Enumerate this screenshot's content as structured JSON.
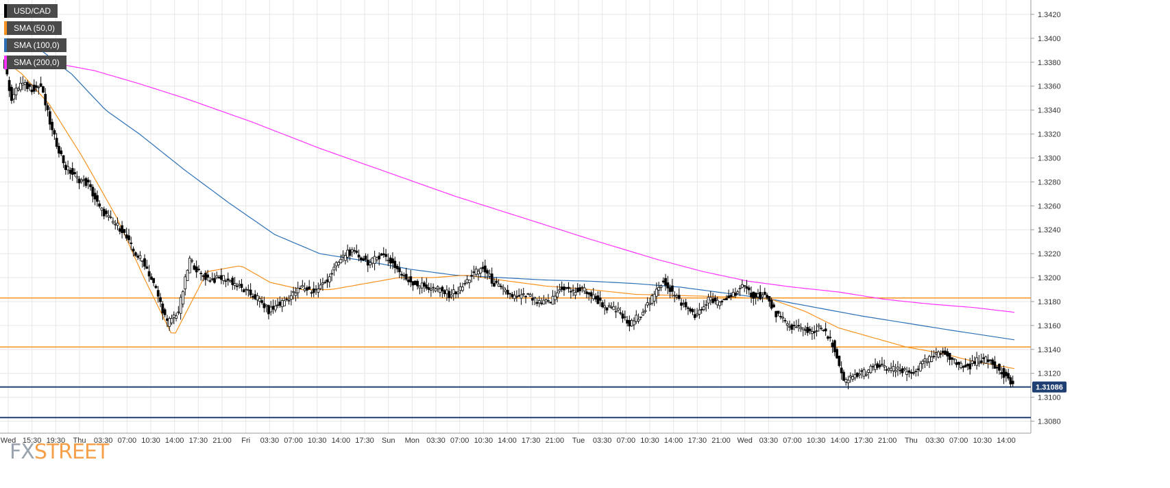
{
  "legend": [
    {
      "label": "USD/CAD",
      "color": "#000000"
    },
    {
      "label": "SMA (50,0)",
      "color": "#f7931e"
    },
    {
      "label": "SMA (100,0)",
      "color": "#2a6fb5"
    },
    {
      "label": "SMA (200,0)",
      "color": "#ff33ff"
    }
  ],
  "watermark": {
    "part1": "FX",
    "part2": "STREET"
  },
  "chart_data": {
    "type": "candlestick",
    "symbol": "USD/CAD",
    "ylim": [
      1.307,
      1.3432
    ],
    "y_ticks": [
      "1.3080",
      "1.3100",
      "1.3120",
      "1.3140",
      "1.3160",
      "1.3180",
      "1.3200",
      "1.3220",
      "1.3240",
      "1.3260",
      "1.3280",
      "1.3300",
      "1.3320",
      "1.3340",
      "1.3360",
      "1.3380",
      "1.3400",
      "1.3420"
    ],
    "x_ticks": [
      "Wed",
      "15:30",
      "19:30",
      "Thu",
      "03:30",
      "07:00",
      "10:30",
      "14:00",
      "17:30",
      "21:00",
      "Fri",
      "03:30",
      "07:00",
      "10:30",
      "14:00",
      "17:30",
      "Sun",
      "Mon",
      "03:30",
      "07:00",
      "10:30",
      "14:00",
      "17:30",
      "21:00",
      "Tue",
      "03:30",
      "07:00",
      "10:30",
      "14:00",
      "17:30",
      "21:00",
      "Wed",
      "03:30",
      "07:00",
      "10:30",
      "14:00",
      "17:30",
      "21:00",
      "Thu",
      "03:30",
      "07:00",
      "10:30",
      "14:00"
    ],
    "current_price": {
      "label": "1.31086",
      "value": 1.31086
    },
    "horizontal_levels": [
      {
        "value": 1.3183,
        "color": "#f7931e"
      },
      {
        "value": 1.3142,
        "color": "#f7931e"
      },
      {
        "value": 1.31086,
        "color": "#1f3f73"
      },
      {
        "value": 1.3083,
        "color": "#1f3f73"
      }
    ],
    "price_path": [
      [
        0,
        1.3385
      ],
      [
        4,
        1.335
      ],
      [
        8,
        1.3362
      ],
      [
        13,
        1.3358
      ],
      [
        17,
        1.336
      ],
      [
        22,
        1.3322
      ],
      [
        28,
        1.3292
      ],
      [
        33,
        1.3283
      ],
      [
        38,
        1.3278
      ],
      [
        43,
        1.3258
      ],
      [
        48,
        1.3248
      ],
      [
        53,
        1.324
      ],
      [
        58,
        1.3222
      ],
      [
        63,
        1.3212
      ],
      [
        68,
        1.319
      ],
      [
        73,
        1.3162
      ],
      [
        78,
        1.3172
      ],
      [
        83,
        1.3215
      ],
      [
        88,
        1.3202
      ],
      [
        93,
        1.3198
      ],
      [
        98,
        1.32
      ],
      [
        103,
        1.3195
      ],
      [
        108,
        1.3188
      ],
      [
        113,
        1.3183
      ],
      [
        118,
        1.3172
      ],
      [
        123,
        1.3178
      ],
      [
        128,
        1.3185
      ],
      [
        133,
        1.3192
      ],
      [
        138,
        1.3188
      ],
      [
        143,
        1.3196
      ],
      [
        148,
        1.321
      ],
      [
        153,
        1.3222
      ],
      [
        158,
        1.3218
      ],
      [
        163,
        1.3212
      ],
      [
        168,
        1.322
      ],
      [
        173,
        1.3212
      ],
      [
        178,
        1.32
      ],
      [
        183,
        1.3195
      ],
      [
        188,
        1.3192
      ],
      [
        193,
        1.319
      ],
      [
        198,
        1.3186
      ],
      [
        203,
        1.319
      ],
      [
        208,
        1.3202
      ],
      [
        213,
        1.3208
      ],
      [
        218,
        1.3195
      ],
      [
        223,
        1.3188
      ],
      [
        228,
        1.3183
      ],
      [
        233,
        1.3185
      ],
      [
        238,
        1.3178
      ],
      [
        243,
        1.318
      ],
      [
        248,
        1.3192
      ],
      [
        253,
        1.3188
      ],
      [
        258,
        1.319
      ],
      [
        263,
        1.3182
      ],
      [
        268,
        1.3175
      ],
      [
        273,
        1.3172
      ],
      [
        278,
        1.316
      ],
      [
        283,
        1.317
      ],
      [
        288,
        1.3182
      ],
      [
        293,
        1.3198
      ],
      [
        298,
        1.3185
      ],
      [
        303,
        1.3175
      ],
      [
        308,
        1.3168
      ],
      [
        313,
        1.3182
      ],
      [
        318,
        1.3178
      ],
      [
        323,
        1.3185
      ],
      [
        328,
        1.3192
      ],
      [
        333,
        1.3185
      ],
      [
        338,
        1.3185
      ],
      [
        343,
        1.317
      ],
      [
        348,
        1.316
      ],
      [
        353,
        1.3158
      ],
      [
        358,
        1.3155
      ],
      [
        363,
        1.3158
      ],
      [
        368,
        1.3145
      ],
      [
        373,
        1.3112
      ],
      [
        378,
        1.3118
      ],
      [
        383,
        1.3122
      ],
      [
        388,
        1.3126
      ],
      [
        393,
        1.3124
      ],
      [
        398,
        1.3122
      ],
      [
        403,
        1.312
      ],
      [
        408,
        1.3128
      ],
      [
        413,
        1.3134
      ],
      [
        418,
        1.3138
      ],
      [
        423,
        1.3128
      ],
      [
        428,
        1.3125
      ],
      [
        433,
        1.3132
      ],
      [
        438,
        1.313
      ],
      [
        443,
        1.3122
      ],
      [
        447,
        1.3112
      ]
    ],
    "sma50": [
      [
        0,
        1.3382
      ],
      [
        8,
        1.337
      ],
      [
        20,
        1.3345
      ],
      [
        35,
        1.33
      ],
      [
        50,
        1.325
      ],
      [
        62,
        1.32
      ],
      [
        75,
        1.315
      ],
      [
        90,
        1.3205
      ],
      [
        105,
        1.321
      ],
      [
        118,
        1.3196
      ],
      [
        132,
        1.319
      ],
      [
        145,
        1.319
      ],
      [
        160,
        1.3195
      ],
      [
        175,
        1.32
      ],
      [
        190,
        1.32
      ],
      [
        205,
        1.3202
      ],
      [
        220,
        1.3198
      ],
      [
        240,
        1.3193
      ],
      [
        260,
        1.319
      ],
      [
        280,
        1.3186
      ],
      [
        300,
        1.3185
      ],
      [
        320,
        1.3184
      ],
      [
        340,
        1.3182
      ],
      [
        355,
        1.3172
      ],
      [
        370,
        1.3158
      ],
      [
        385,
        1.315
      ],
      [
        400,
        1.3142
      ],
      [
        415,
        1.3137
      ],
      [
        430,
        1.313
      ],
      [
        448,
        1.3124
      ]
    ],
    "sma100": [
      [
        0,
        1.3399
      ],
      [
        15,
        1.3392
      ],
      [
        30,
        1.337
      ],
      [
        45,
        1.334
      ],
      [
        60,
        1.332
      ],
      [
        80,
        1.329
      ],
      [
        100,
        1.3262
      ],
      [
        120,
        1.3236
      ],
      [
        140,
        1.322
      ],
      [
        160,
        1.3214
      ],
      [
        180,
        1.3207
      ],
      [
        200,
        1.3202
      ],
      [
        220,
        1.32
      ],
      [
        240,
        1.3198
      ],
      [
        260,
        1.3197
      ],
      [
        280,
        1.3195
      ],
      [
        300,
        1.3192
      ],
      [
        320,
        1.3187
      ],
      [
        340,
        1.3182
      ],
      [
        360,
        1.3175
      ],
      [
        380,
        1.3168
      ],
      [
        400,
        1.3162
      ],
      [
        420,
        1.3156
      ],
      [
        448,
        1.3148
      ]
    ],
    "sma200": [
      [
        0,
        1.3382
      ],
      [
        20,
        1.338
      ],
      [
        40,
        1.3373
      ],
      [
        60,
        1.3362
      ],
      [
        80,
        1.335
      ],
      [
        110,
        1.333
      ],
      [
        140,
        1.3308
      ],
      [
        170,
        1.3288
      ],
      [
        200,
        1.3268
      ],
      [
        230,
        1.325
      ],
      [
        260,
        1.3232
      ],
      [
        290,
        1.3215
      ],
      [
        310,
        1.3205
      ],
      [
        330,
        1.3197
      ],
      [
        350,
        1.3192
      ],
      [
        370,
        1.3188
      ],
      [
        390,
        1.3182
      ],
      [
        410,
        1.3178
      ],
      [
        430,
        1.3175
      ],
      [
        448,
        1.3171
      ]
    ]
  }
}
